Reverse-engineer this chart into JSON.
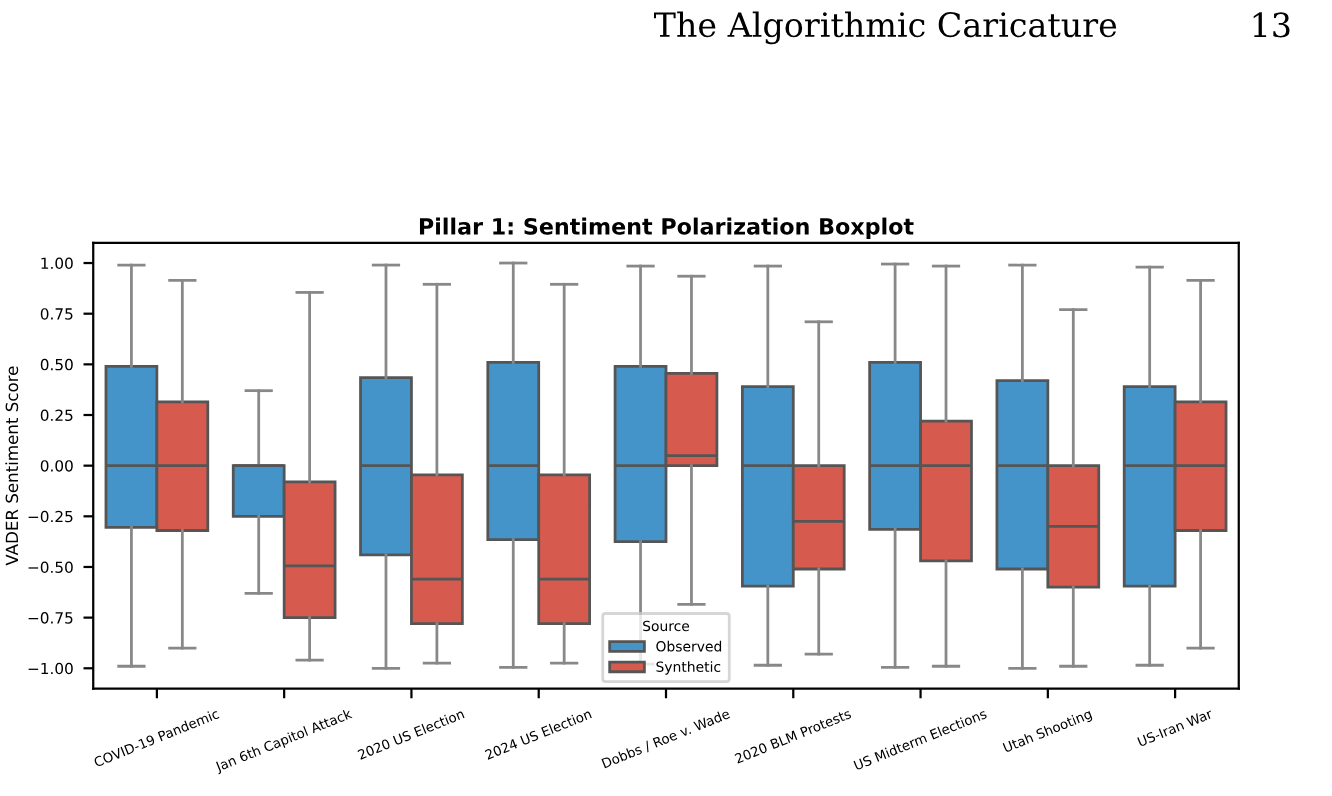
{
  "chart_data": {
    "type": "box",
    "title": "Pillar 1: Sentiment Polarization Boxplot",
    "ylabel": "VADER Sentiment Score",
    "legend_title": "Source",
    "legend": "bottom",
    "grid": false,
    "annotations": [
      "The Algorithmic Caricature",
      "13"
    ],
    "categories": [
      "COVID-19 Pandemic",
      "Jan 6th Capitol Attack",
      "2020 US Election",
      "2024 US Election",
      "Dobbs / Roe v. Wade",
      "2020 BLM Protests",
      "US Midterm Elections",
      "Utah Shooting",
      "US-Iran War"
    ],
    "ylim": [
      -1.1,
      1.1
    ],
    "yticks": [
      {
        "value": -1.0,
        "label": "−1.00"
      },
      {
        "value": -0.75,
        "label": "−0.75"
      },
      {
        "value": -0.5,
        "label": "−0.50"
      },
      {
        "value": -0.25,
        "label": "−0.25"
      },
      {
        "value": 0,
        "label": "0.00"
      },
      {
        "value": 0.25,
        "label": "0.25"
      },
      {
        "value": 0.5,
        "label": "0.50"
      },
      {
        "value": 0.75,
        "label": "0.75"
      },
      {
        "value": 1.0,
        "label": "1.00"
      }
    ],
    "series": [
      {
        "name": "Observed",
        "color": "#4494c9",
        "boxes": [
          {
            "low": -0.99,
            "q1": -0.305,
            "median": 0,
            "q3": 0.49,
            "high": 0.99
          },
          {
            "low": -0.63,
            "q1": -0.25,
            "median": 0,
            "q3": 0,
            "high": 0.37
          },
          {
            "low": -1.0,
            "q1": -0.44,
            "median": 0,
            "q3": 0.435,
            "high": 0.99
          },
          {
            "low": -0.995,
            "q1": -0.365,
            "median": 0,
            "q3": 0.51,
            "high": 1.0
          },
          {
            "low": -0.98,
            "q1": -0.375,
            "median": 0,
            "q3": 0.49,
            "high": 0.985
          },
          {
            "low": -0.985,
            "q1": -0.595,
            "median": 0,
            "q3": 0.39,
            "high": 0.985
          },
          {
            "low": -0.995,
            "q1": -0.315,
            "median": 0,
            "q3": 0.51,
            "high": 0.995
          },
          {
            "low": -1.0,
            "q1": -0.51,
            "median": 0,
            "q3": 0.42,
            "high": 0.99
          },
          {
            "low": -0.985,
            "q1": -0.595,
            "median": 0,
            "q3": 0.39,
            "high": 0.98
          }
        ]
      },
      {
        "name": "Synthetic",
        "color": "#d65b4e",
        "boxes": [
          {
            "low": -0.9,
            "q1": -0.32,
            "median": 0,
            "q3": 0.315,
            "high": 0.915
          },
          {
            "low": -0.96,
            "q1": -0.75,
            "median": -0.495,
            "q3": -0.08,
            "high": 0.855
          },
          {
            "low": -0.975,
            "q1": -0.78,
            "median": -0.56,
            "q3": -0.045,
            "high": 0.895
          },
          {
            "low": -0.975,
            "q1": -0.78,
            "median": -0.56,
            "q3": -0.045,
            "high": 0.895
          },
          {
            "low": -0.685,
            "q1": 0,
            "median": 0.05,
            "q3": 0.455,
            "high": 0.935
          },
          {
            "low": -0.93,
            "q1": -0.51,
            "median": -0.275,
            "q3": 0,
            "high": 0.71
          },
          {
            "low": -0.99,
            "q1": -0.47,
            "median": 0,
            "q3": 0.22,
            "high": 0.985
          },
          {
            "low": -0.99,
            "q1": -0.6,
            "median": -0.3,
            "q3": 0,
            "high": 0.77
          },
          {
            "low": -0.9,
            "q1": -0.32,
            "median": 0,
            "q3": 0.315,
            "high": 0.915
          }
        ]
      }
    ]
  }
}
